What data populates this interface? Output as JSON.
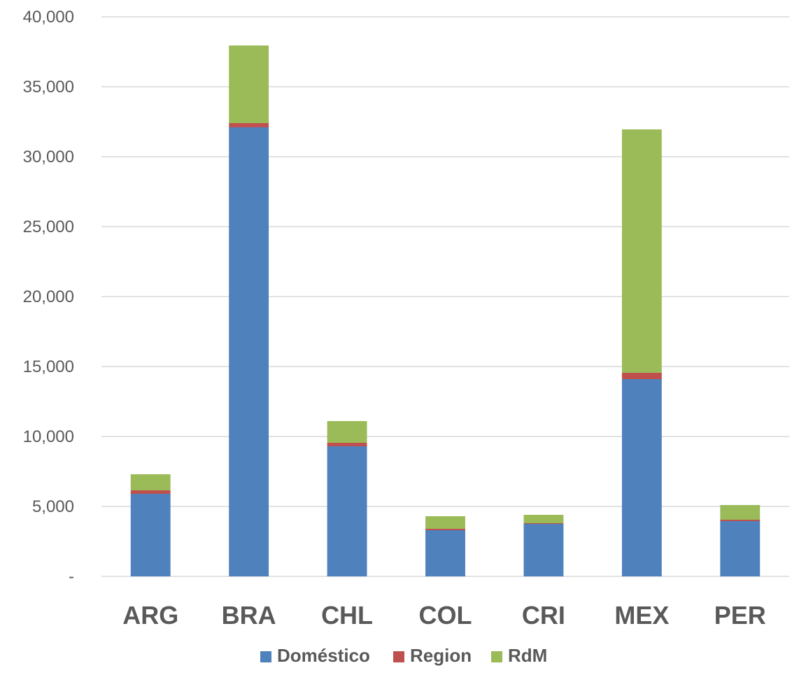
{
  "chart_data": {
    "type": "bar",
    "stacked": true,
    "categories": [
      "ARG",
      "BRA",
      "CHL",
      "COL",
      "CRI",
      "MEX",
      "PER"
    ],
    "series": [
      {
        "name": "Doméstico",
        "color": "#4f81bd",
        "values": [
          5900,
          32100,
          9300,
          3300,
          3750,
          14100,
          3950
        ]
      },
      {
        "name": "Region",
        "color": "#c0504d",
        "values": [
          250,
          300,
          250,
          100,
          50,
          450,
          100
        ]
      },
      {
        "name": "RdM",
        "color": "#9bbb59",
        "values": [
          1150,
          5550,
          1550,
          900,
          600,
          17400,
          1050
        ]
      }
    ],
    "ylim": [
      0,
      40000
    ],
    "yticks": [
      0,
      5000,
      10000,
      15000,
      20000,
      25000,
      30000,
      35000,
      40000
    ],
    "ytick_labels": [
      "-",
      "5,000",
      "10,000",
      "15,000",
      "20,000",
      "25,000",
      "30,000",
      "35,000",
      "40,000"
    ],
    "grid": true,
    "legend_position": "bottom",
    "title": "",
    "xlabel": "",
    "ylabel": ""
  }
}
